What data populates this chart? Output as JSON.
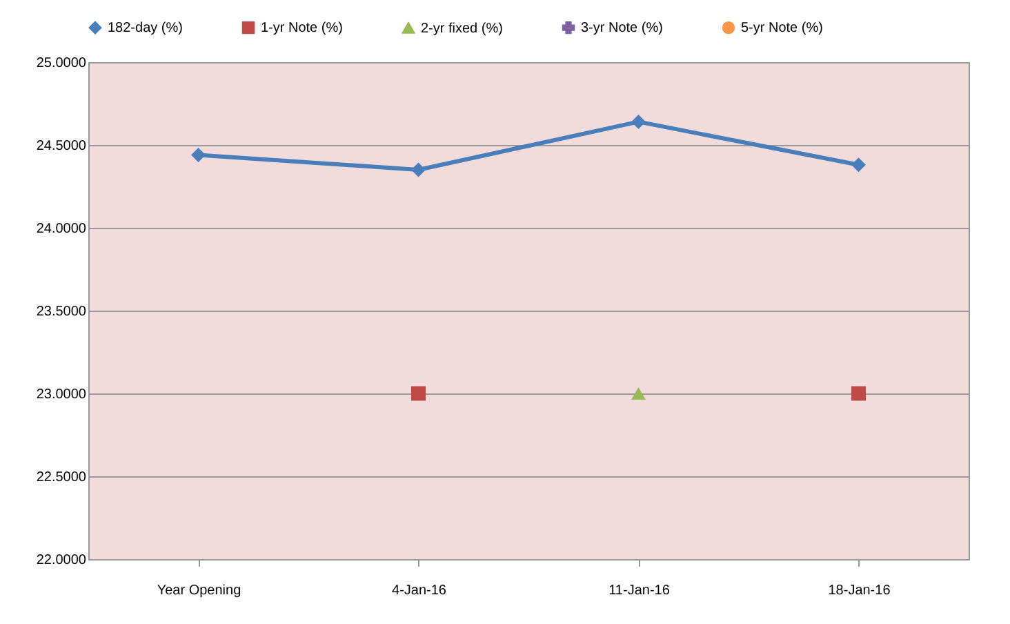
{
  "chart_data": {
    "type": "line",
    "categories": [
      "Year Opening",
      "4-Jan-16",
      "11-Jan-16",
      "18-Jan-16"
    ],
    "series": [
      {
        "name": "182-day (%)",
        "color": "#4a7ebb",
        "marker": "diamond",
        "values": [
          24.44,
          24.35,
          24.64,
          24.38
        ]
      },
      {
        "name": "1-yr Note (%)",
        "type": "scatter",
        "color": "#be4b48",
        "marker": "square",
        "values": [
          null,
          23.0,
          null,
          23.0
        ]
      },
      {
        "name": "2-yr fixed (%)",
        "type": "scatter",
        "color": "#98b954",
        "marker": "triangle",
        "values": [
          null,
          null,
          23.0,
          null
        ]
      },
      {
        "name": "3-yr Note (%)",
        "color": "#7d60a0",
        "marker": "cross",
        "values": [
          null,
          null,
          null,
          null
        ]
      },
      {
        "name": "5-yr Note (%)",
        "color": "#f79646",
        "marker": "circle",
        "values": [
          null,
          null,
          null,
          null
        ]
      }
    ],
    "ylim": [
      22.0,
      25.0
    ],
    "yticks": [
      {
        "value": 22.0,
        "label": "22.0000"
      },
      {
        "value": 22.5,
        "label": "22.5000"
      },
      {
        "value": 23.0,
        "label": "23.0000"
      },
      {
        "value": 23.5,
        "label": "23.5000"
      },
      {
        "value": 24.0,
        "label": "24.0000"
      },
      {
        "value": 24.5,
        "label": "24.5000"
      },
      {
        "value": 25.0,
        "label": "25.0000"
      }
    ],
    "grid": "y",
    "legend": "top",
    "line_style": "solid"
  }
}
